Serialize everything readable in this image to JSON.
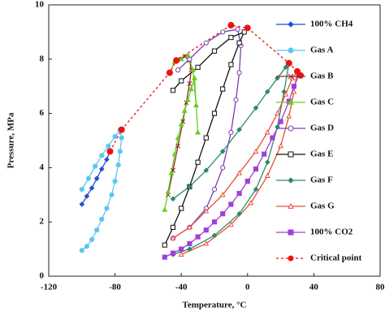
{
  "chart_data": {
    "type": "line",
    "x_label": "Temperature, °C",
    "y_label": "Pressure, MPa",
    "xlim": [
      -120,
      80
    ],
    "xticks": [
      -120,
      -80,
      -40,
      0,
      40,
      80
    ],
    "ylim": [
      0,
      10
    ],
    "yticks": [
      0,
      2,
      4,
      6,
      8,
      10
    ],
    "legend": "right",
    "series": [
      {
        "name": "100% CH4",
        "color": "#1f4fd6",
        "marker": "diamond",
        "filled": true,
        "dash": false,
        "x": [
          -100,
          -97,
          -94,
          -91,
          -88,
          -85,
          -83
        ],
        "values": [
          2.65,
          2.95,
          3.25,
          3.6,
          3.95,
          4.3,
          4.6
        ]
      },
      {
        "name": "Gas A",
        "color": "#5bc8f0",
        "marker": "circle",
        "filled": true,
        "dash": false,
        "x": [
          -100,
          -96,
          -92,
          -88,
          -84,
          -80,
          -77,
          -76,
          -77,
          -78,
          -80,
          -82,
          -85,
          -88,
          -91,
          -94,
          -97,
          -100
        ],
        "values": [
          3.2,
          3.6,
          4.05,
          4.45,
          4.8,
          5.15,
          5.4,
          5.1,
          4.6,
          4.1,
          3.5,
          3.0,
          2.5,
          2.1,
          1.7,
          1.35,
          1.1,
          0.95
        ]
      },
      {
        "name": "Gas B",
        "color": "#8b2a2a",
        "marker": "x",
        "filled": false,
        "dash": false,
        "x": [
          -48,
          -45,
          -42,
          -39,
          -37,
          -35,
          -34,
          -35,
          -38,
          -42
        ],
        "values": [
          3.0,
          3.9,
          4.8,
          5.7,
          6.4,
          7.1,
          7.6,
          7.95,
          8.1,
          8.0
        ]
      },
      {
        "name": "Gas C",
        "color": "#66cc22",
        "marker": "triangle",
        "filled": true,
        "dash": false,
        "x": [
          -50,
          -48,
          -46,
          -44,
          -42,
          -40,
          -38,
          -36,
          -34,
          -32,
          -30,
          -31,
          -33,
          -36,
          -40,
          -44,
          -47
        ],
        "values": [
          2.45,
          3.1,
          3.8,
          4.5,
          5.1,
          5.6,
          6.1,
          6.5,
          6.9,
          7.3,
          5.3,
          6.3,
          7.6,
          8.15,
          8.0,
          7.9,
          7.5
        ]
      },
      {
        "name": "Gas D",
        "color": "#7a3fb0",
        "marker": "circle",
        "filled": false,
        "dash": false,
        "x": [
          -45,
          -35,
          -25,
          -20,
          -15,
          -10,
          -7,
          -5,
          -4,
          -6,
          -15,
          -25,
          -35,
          -42
        ],
        "values": [
          1.4,
          1.8,
          2.5,
          3.2,
          4.0,
          5.3,
          6.5,
          7.5,
          8.5,
          9.1,
          9.0,
          8.6,
          8.0,
          7.6
        ]
      },
      {
        "name": "Gas E",
        "color": "#111111",
        "marker": "square",
        "filled": false,
        "dash": false,
        "x": [
          -50,
          -45,
          -40,
          -35,
          -30,
          -25,
          -20,
          -15,
          -10,
          -5,
          -2,
          -10,
          -20,
          -30,
          -40,
          -45
        ],
        "values": [
          1.15,
          1.8,
          2.5,
          3.3,
          4.2,
          5.1,
          6.0,
          6.9,
          7.8,
          8.6,
          9.0,
          8.8,
          8.3,
          7.7,
          7.2,
          6.85
        ]
      },
      {
        "name": "Gas F",
        "color": "#2a8a6a",
        "marker": "diamond",
        "filled": true,
        "dash": false,
        "x": [
          -45,
          -35,
          -25,
          -15,
          -5,
          5,
          12,
          18,
          23,
          25,
          22,
          18,
          12,
          5,
          -5,
          -20,
          -35,
          -45
        ],
        "values": [
          2.85,
          3.3,
          3.9,
          4.6,
          5.4,
          6.2,
          6.8,
          7.3,
          7.7,
          7.85,
          6.8,
          5.5,
          4.2,
          3.2,
          2.3,
          1.5,
          1.0,
          0.8
        ]
      },
      {
        "name": "Gas G",
        "color": "#e8503a",
        "marker": "triangle",
        "filled": false,
        "dash": false,
        "x": [
          -45,
          -35,
          -25,
          -15,
          -5,
          5,
          12,
          18,
          23,
          27,
          30,
          28,
          25,
          20,
          12,
          2,
          -10,
          -25,
          -40
        ],
        "values": [
          1.4,
          1.8,
          2.4,
          3.0,
          3.8,
          4.6,
          5.3,
          6.0,
          6.7,
          7.3,
          7.55,
          6.8,
          5.9,
          4.8,
          3.7,
          2.7,
          1.9,
          1.2,
          0.8
        ]
      },
      {
        "name": "100% CO2",
        "color": "#a040d8",
        "marker": "square",
        "filled": true,
        "dash": false,
        "x": [
          -50,
          -45,
          -40,
          -35,
          -30,
          -25,
          -20,
          -15,
          -10,
          -5,
          0,
          5,
          10,
          15,
          20,
          25,
          28,
          31
        ],
        "values": [
          0.7,
          0.85,
          1.0,
          1.2,
          1.45,
          1.7,
          2.0,
          2.3,
          2.65,
          3.05,
          3.5,
          3.95,
          4.5,
          5.1,
          5.7,
          6.45,
          7.0,
          7.4
        ]
      },
      {
        "name": "Critical point",
        "color": "#ee1111",
        "marker": "circle",
        "filled": true,
        "dash": true,
        "x": [
          -83,
          -76,
          -47,
          -43,
          -10,
          0,
          25,
          30,
          32
        ],
        "values": [
          4.6,
          5.4,
          7.5,
          7.95,
          9.25,
          9.15,
          7.85,
          7.55,
          7.4
        ]
      }
    ]
  }
}
